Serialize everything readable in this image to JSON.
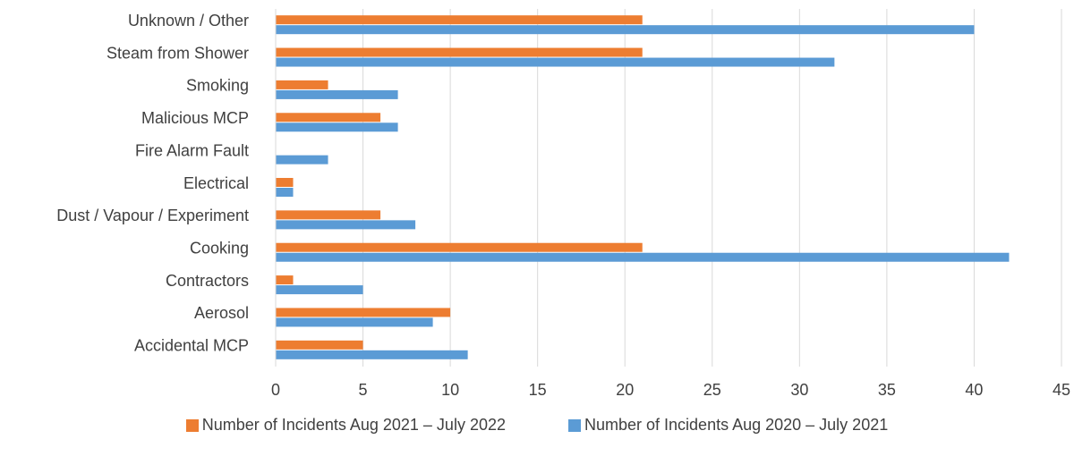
{
  "chart_data": {
    "type": "bar",
    "orientation": "horizontal",
    "title": "",
    "xlabel": "",
    "ylabel": "",
    "categories": [
      "Unknown / Other",
      "Steam from Shower",
      "Smoking",
      "Malicious MCP",
      "Fire Alarm Fault",
      "Electrical",
      "Dust / Vapour / Experiment",
      "Cooking",
      "Contractors",
      "Aerosol",
      "Accidental MCP"
    ],
    "series": [
      {
        "name": "Number of Incidents  Aug 2021 – July 2022",
        "color": "#ED7D31",
        "values": [
          21,
          21,
          3,
          6,
          0,
          1,
          6,
          21,
          1,
          10,
          5
        ]
      },
      {
        "name": "Number of Incidents  Aug 2020 – July 2021",
        "color": "#5B9BD5",
        "values": [
          40,
          32,
          7,
          7,
          3,
          1,
          8,
          42,
          5,
          9,
          11
        ]
      }
    ],
    "xlim": [
      0,
      45
    ],
    "xticks": [
      0,
      5,
      10,
      15,
      20,
      25,
      30,
      35,
      40,
      45
    ],
    "grid": true,
    "legend_position": "bottom"
  }
}
